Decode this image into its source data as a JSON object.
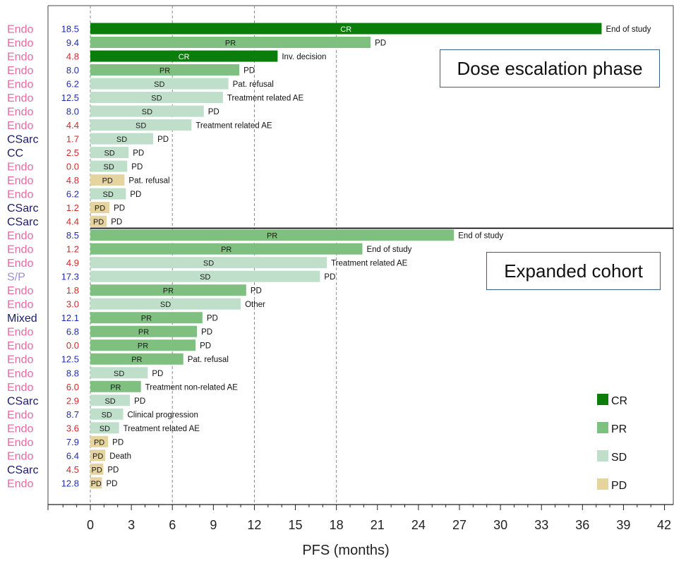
{
  "chart_data": {
    "type": "bar",
    "orientation": "horizontal",
    "xlabel": "PFS (months)",
    "xlim": [
      -4.5,
      42
    ],
    "xticks": [
      0,
      3,
      6,
      9,
      12,
      15,
      18,
      21,
      24,
      27,
      30,
      33,
      36,
      39,
      42
    ],
    "vlines": [
      0,
      6,
      12,
      18
    ],
    "colors": {
      "CR": "#0a7d0a",
      "PR": "#7fbf7f",
      "SD": "#bfdfcb",
      "PD": "#e5d3a0",
      "histology_endo": "#e76aa5",
      "histology_dark": "#1a1a6e",
      "histology_sp": "#9b8fcf",
      "value_blue": "#1f2fa8",
      "value_red": "#cc2b2b"
    },
    "panels": [
      {
        "title": "Dose escalation phase"
      },
      {
        "title": "Expanded cohort"
      }
    ],
    "legend": {
      "position": "bottom-right",
      "entries": [
        {
          "name": "CR",
          "color": "#0a7d0a"
        },
        {
          "name": "PR",
          "color": "#7fbf7f"
        },
        {
          "name": "SD",
          "color": "#bfdfcb"
        },
        {
          "name": "PD",
          "color": "#e5d3a0"
        }
      ]
    },
    "rows": [
      {
        "histology": "Endo",
        "value": "18.5",
        "response": "CR",
        "pfs": 37.4,
        "reason": "End of study"
      },
      {
        "histology": "Endo",
        "value": "9.4",
        "response": "PR",
        "pfs": 20.5,
        "reason": "PD"
      },
      {
        "histology": "Endo",
        "value": "4.8",
        "response": "CR",
        "pfs": 13.7,
        "reason": "Inv. decision"
      },
      {
        "histology": "Endo",
        "value": "8.0",
        "response": "PR",
        "pfs": 10.9,
        "reason": "PD"
      },
      {
        "histology": "Endo",
        "value": "6.2",
        "response": "SD",
        "pfs": 10.1,
        "reason": "Pat. refusal"
      },
      {
        "histology": "Endo",
        "value": "12.5",
        "response": "SD",
        "pfs": 9.7,
        "reason": "Treatment related AE"
      },
      {
        "histology": "Endo",
        "value": "8.0",
        "response": "SD",
        "pfs": 8.3,
        "reason": "PD"
      },
      {
        "histology": "Endo",
        "value": "4.4",
        "response": "SD",
        "pfs": 7.4,
        "reason": "Treatment related AE"
      },
      {
        "histology": "CSarc",
        "value": "1.7",
        "response": "SD",
        "pfs": 4.6,
        "reason": "PD"
      },
      {
        "histology": "CC",
        "value": "2.5",
        "response": "SD",
        "pfs": 2.8,
        "reason": "PD"
      },
      {
        "histology": "Endo",
        "value": "0.0",
        "response": "SD",
        "pfs": 2.7,
        "reason": "PD"
      },
      {
        "histology": "Endo",
        "value": "4.8",
        "response": "PD",
        "pfs": 2.5,
        "reason": "Pat. refusal"
      },
      {
        "histology": "Endo",
        "value": "6.2",
        "response": "SD",
        "pfs": 2.6,
        "reason": "PD"
      },
      {
        "histology": "CSarc",
        "value": "1.2",
        "response": "PD",
        "pfs": 1.4,
        "reason": "PD"
      },
      {
        "histology": "CSarc",
        "value": "4.4",
        "response": "PD",
        "pfs": 1.2,
        "reason": "PD"
      },
      {
        "histology": "Endo",
        "value": "8.5",
        "response": "PR",
        "pfs": 26.6,
        "reason": "End of study"
      },
      {
        "histology": "Endo",
        "value": "1.2",
        "response": "PR",
        "pfs": 19.9,
        "reason": "End of study"
      },
      {
        "histology": "Endo",
        "value": "4.9",
        "response": "SD",
        "pfs": 17.3,
        "reason": "Treatment related AE"
      },
      {
        "histology": "S/P",
        "value": "17.3",
        "response": "SD",
        "pfs": 16.8,
        "reason": "PD"
      },
      {
        "histology": "Endo",
        "value": "1.8",
        "response": "PR",
        "pfs": 11.4,
        "reason": "PD"
      },
      {
        "histology": "Endo",
        "value": "3.0",
        "response": "SD",
        "pfs": 11.0,
        "reason": "Other"
      },
      {
        "histology": "Mixed",
        "value": "12.1",
        "response": "PR",
        "pfs": 8.2,
        "reason": "PD"
      },
      {
        "histology": "Endo",
        "value": "6.8",
        "response": "PR",
        "pfs": 7.8,
        "reason": "PD"
      },
      {
        "histology": "Endo",
        "value": "0.0",
        "response": "PR",
        "pfs": 7.7,
        "reason": "PD"
      },
      {
        "histology": "Endo",
        "value": "12.5",
        "response": "PR",
        "pfs": 6.8,
        "reason": "Pat. refusal"
      },
      {
        "histology": "Endo",
        "value": "8.8",
        "response": "SD",
        "pfs": 4.2,
        "reason": "PD"
      },
      {
        "histology": "Endo",
        "value": "6.0",
        "response": "PR",
        "pfs": 3.7,
        "reason": "Treatment non-related AE"
      },
      {
        "histology": "CSarc",
        "value": "2.9",
        "response": "SD",
        "pfs": 2.9,
        "reason": "PD"
      },
      {
        "histology": "Endo",
        "value": "8.7",
        "response": "SD",
        "pfs": 2.4,
        "reason": "Clinical progression"
      },
      {
        "histology": "Endo",
        "value": "3.6",
        "response": "SD",
        "pfs": 2.1,
        "reason": "Treatment related AE"
      },
      {
        "histology": "Endo",
        "value": "7.9",
        "response": "PD",
        "pfs": 1.3,
        "reason": "PD"
      },
      {
        "histology": "Endo",
        "value": "6.4",
        "response": "PD",
        "pfs": 1.1,
        "reason": "Death"
      },
      {
        "histology": "CSarc",
        "value": "4.5",
        "response": "PD",
        "pfs": 0.95,
        "reason": "PD"
      },
      {
        "histology": "Endo",
        "value": "12.8",
        "response": "PD",
        "pfs": 0.85,
        "reason": "PD"
      }
    ],
    "value_color_keys": [
      "value_blue",
      "value_blue",
      "value_red",
      "value_blue",
      "value_blue",
      "value_blue",
      "value_blue",
      "value_red",
      "value_red",
      "value_red",
      "value_red",
      "value_red",
      "value_blue",
      "value_red",
      "value_red",
      "value_blue",
      "value_red",
      "value_red",
      "value_blue",
      "value_red",
      "value_red",
      "value_blue",
      "value_blue",
      "value_red",
      "value_blue",
      "value_blue",
      "value_red",
      "value_red",
      "value_blue",
      "value_red",
      "value_blue",
      "value_blue",
      "value_red",
      "value_blue"
    ]
  }
}
